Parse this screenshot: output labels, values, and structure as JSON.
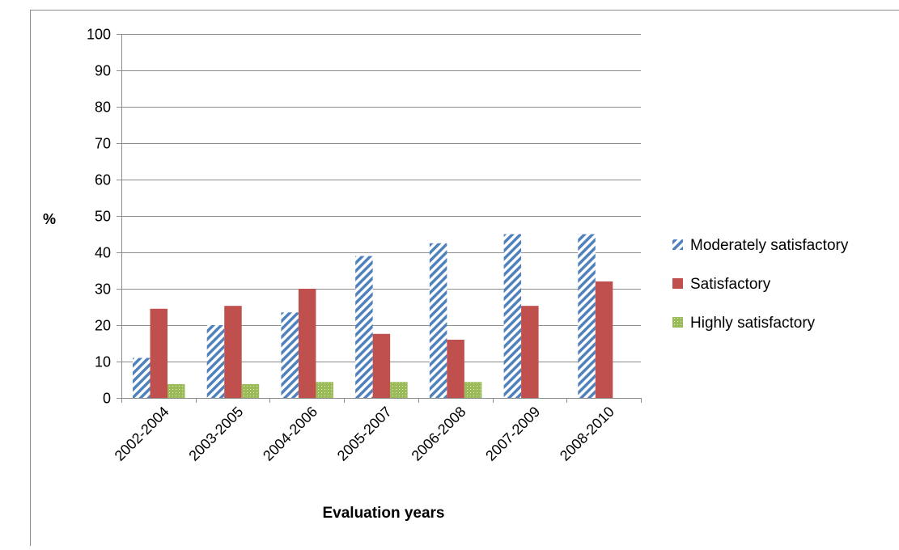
{
  "chart_data": {
    "type": "bar",
    "title": "",
    "xlabel": "Evaluation years",
    "ylabel": "%",
    "ylim": [
      0,
      100
    ],
    "yticks": [
      0,
      10,
      20,
      30,
      40,
      50,
      60,
      70,
      80,
      90,
      100
    ],
    "categories": [
      "2002-2004",
      "2003-2005",
      "2004-2006",
      "2005-2007",
      "2006-2008",
      "2007-2009",
      "2008-2010"
    ],
    "series": [
      {
        "name": "Moderately satisfactory",
        "values": [
          11,
          20,
          23.5,
          39,
          42.5,
          45,
          45
        ],
        "color": "#4f81bd",
        "pattern": "diagonal-stripes"
      },
      {
        "name": "Satisfactory",
        "values": [
          24.5,
          25.3,
          30,
          17.6,
          16,
          25.3,
          32
        ],
        "color": "#c0504d",
        "pattern": "solid"
      },
      {
        "name": "Highly satisfactory",
        "values": [
          3.8,
          3.8,
          4.4,
          4.4,
          4.4,
          0,
          0
        ],
        "color": "#9bbb59",
        "pattern": "dotted"
      }
    ],
    "grid": true,
    "legend_position": "right"
  }
}
